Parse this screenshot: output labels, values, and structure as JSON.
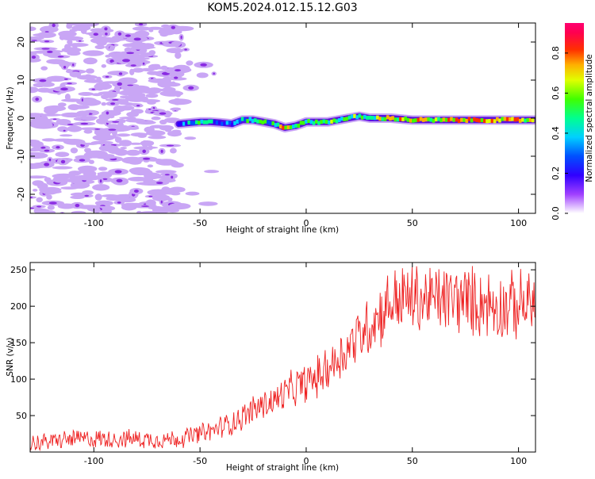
{
  "title": "KOM5.2024.012.15.12.G03",
  "chart_data": [
    {
      "type": "heatmap",
      "xlabel": "Height of straight line (km)",
      "ylabel": "Frequency (Hz)",
      "xlim": [
        -130,
        108
      ],
      "ylim": [
        -25,
        25
      ],
      "xticks": [
        "-100",
        "-50",
        "0",
        "50",
        "100"
      ],
      "yticks": [
        "-20",
        "-10",
        "0",
        "10",
        "20"
      ],
      "colorbar": {
        "label": "Normalized spectral amplitude",
        "range": [
          0,
          0.95
        ],
        "ticks": [
          "0.0",
          "0.2",
          "0.4",
          "0.6",
          "0.8"
        ],
        "colors": [
          "#ffffff",
          "#c080ff",
          "#8000ff",
          "#0000ff",
          "#00c0ff",
          "#00ff80",
          "#40ff00",
          "#ffff00",
          "#ff8000",
          "#ff0000",
          "#ff0080"
        ]
      },
      "ridge": {
        "name": "signal ridge",
        "x": [
          -60,
          -50,
          -45,
          -40,
          -35,
          -30,
          -25,
          -20,
          -15,
          -10,
          -5,
          0,
          10,
          20,
          25,
          30,
          40,
          50,
          60,
          70,
          80,
          90,
          100,
          108
        ],
        "y": [
          -1.5,
          -1.0,
          -1.0,
          -1.2,
          -1.5,
          -0.5,
          -0.5,
          -1.0,
          -1.5,
          -2.5,
          -2.0,
          -1.0,
          -1.0,
          0.0,
          0.5,
          0.0,
          0.0,
          -0.5,
          -0.5,
          -0.5,
          -0.5,
          -0.5,
          -0.5,
          -0.5
        ],
        "amplitude": [
          0.3,
          0.45,
          0.4,
          0.35,
          0.35,
          0.45,
          0.55,
          0.55,
          0.5,
          0.75,
          0.6,
          0.5,
          0.6,
          0.55,
          0.6,
          0.65,
          0.7,
          0.75,
          0.7,
          0.8,
          0.85,
          0.8,
          0.75,
          0.8
        ]
      }
    },
    {
      "type": "line",
      "xlabel": "Height of straight line (km)",
      "ylabel": "SNR (v/v)",
      "xlim": [
        -130,
        108
      ],
      "ylim": [
        0,
        260
      ],
      "xticks": [
        "-100",
        "-50",
        "0",
        "50",
        "100"
      ],
      "yticks": [
        "50",
        "100",
        "150",
        "200",
        "250"
      ],
      "color": "#ee2222",
      "series": [
        {
          "x": [
            -130,
            -120,
            -110,
            -100,
            -90,
            -80,
            -70,
            -60,
            -50,
            -45,
            -40,
            -35,
            -30,
            -25,
            -20,
            -15,
            -10,
            -5,
            0,
            5,
            10,
            15,
            20,
            25,
            30,
            35,
            40,
            45,
            50,
            55,
            60,
            65,
            70,
            75,
            80,
            85,
            90,
            95,
            100,
            105,
            108
          ],
          "values": [
            12,
            15,
            18,
            18,
            18,
            18,
            17,
            18,
            25,
            28,
            35,
            40,
            48,
            58,
            65,
            70,
            80,
            88,
            95,
            102,
            115,
            128,
            145,
            160,
            175,
            190,
            205,
            210,
            210,
            208,
            210,
            210,
            210,
            208,
            205,
            205,
            200,
            200,
            200,
            205,
            200
          ]
        }
      ]
    }
  ]
}
